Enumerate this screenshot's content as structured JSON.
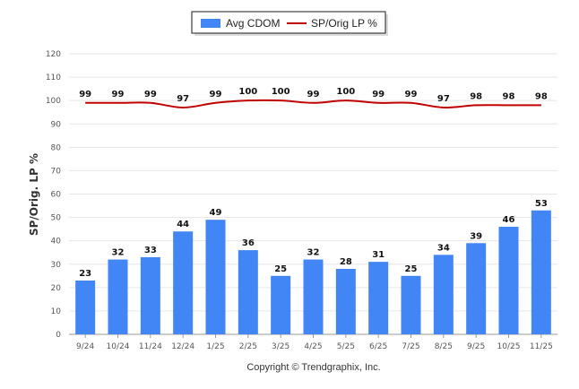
{
  "chart_data": {
    "type": "bar",
    "categories": [
      "9/24",
      "10/24",
      "11/24",
      "12/24",
      "1/25",
      "2/25",
      "3/25",
      "4/25",
      "5/25",
      "6/25",
      "7/25",
      "8/25",
      "9/25",
      "10/25",
      "11/25"
    ],
    "series": [
      {
        "name": "Avg CDOM",
        "type": "bar",
        "color": "#4285f4",
        "values": [
          23,
          32,
          33,
          44,
          49,
          36,
          25,
          32,
          28,
          31,
          25,
          34,
          39,
          46,
          53
        ]
      },
      {
        "name": "SP/Orig LP %",
        "type": "line",
        "color": "#c00000",
        "values": [
          99,
          99,
          99,
          97,
          99,
          100,
          100,
          99,
          100,
          99,
          99,
          97,
          98,
          98,
          98
        ]
      }
    ],
    "ylabel": "SP/Orig. LP %",
    "ylim": [
      0,
      120
    ],
    "yticks": [
      0,
      10,
      20,
      30,
      40,
      50,
      60,
      70,
      80,
      90,
      100,
      110,
      120
    ],
    "grid": true,
    "legend_position": "top-center"
  },
  "footer": {
    "copyright": "Copyright © Trendgraphix, Inc."
  }
}
